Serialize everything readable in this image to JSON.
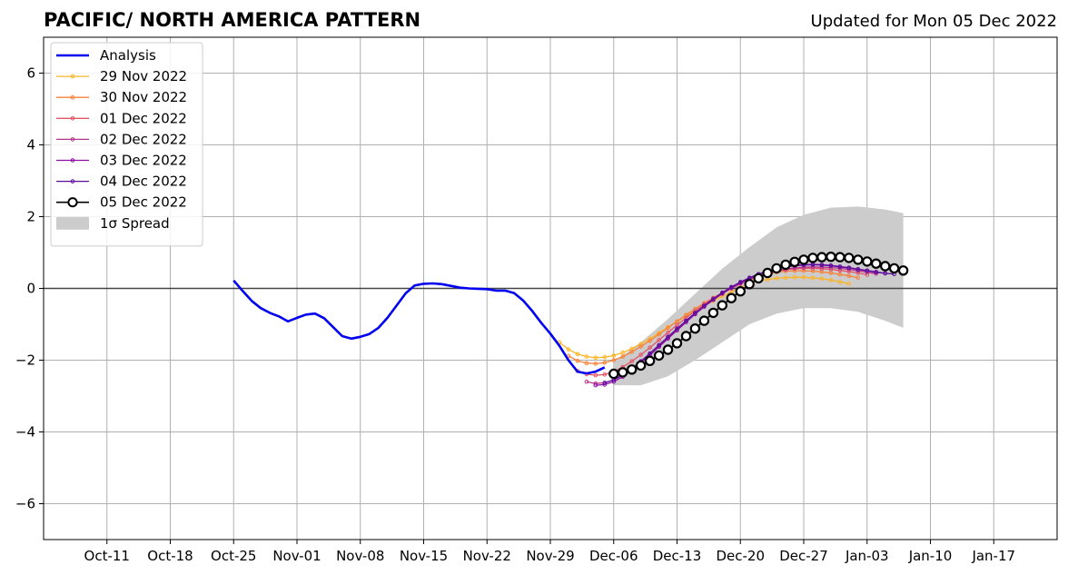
{
  "chart_data": {
    "type": "line",
    "title": "PACIFIC/ NORTH AMERICA PATTERN",
    "subtitle": "Updated for Mon 05 Dec 2022",
    "xlabel": "",
    "ylabel": "",
    "xlim": [
      "2022-10-04",
      "2023-01-24"
    ],
    "ylim": [
      -7,
      7
    ],
    "grid": true,
    "legend_position": "top-left",
    "x_ticks": [
      "Oct-11",
      "Oct-18",
      "Oct-25",
      "Nov-01",
      "Nov-08",
      "Nov-15",
      "Nov-22",
      "Nov-29",
      "Dec-06",
      "Dec-13",
      "Dec-20",
      "Dec-27",
      "Jan-03",
      "Jan-10",
      "Jan-17"
    ],
    "x_tick_dates": [
      "2022-10-11",
      "2022-10-18",
      "2022-10-25",
      "2022-11-01",
      "2022-11-08",
      "2022-11-15",
      "2022-11-22",
      "2022-11-29",
      "2022-12-06",
      "2022-12-13",
      "2022-12-20",
      "2022-12-27",
      "2023-01-03",
      "2023-01-10",
      "2023-01-17"
    ],
    "y_ticks": [
      6,
      4,
      2,
      0,
      -2,
      -4,
      -6
    ],
    "y_tick_labels": [
      "6",
      "4",
      "2",
      "0",
      "−2",
      "−4",
      "−6"
    ],
    "analysis": {
      "name": "Analysis",
      "color": "#0000ee",
      "x": [
        "2022-10-25",
        "2022-10-26",
        "2022-10-27",
        "2022-10-28",
        "2022-10-29",
        "2022-10-30",
        "2022-10-31",
        "2022-11-01",
        "2022-11-02",
        "2022-11-03",
        "2022-11-04",
        "2022-11-05",
        "2022-11-06",
        "2022-11-07",
        "2022-11-08",
        "2022-11-09",
        "2022-11-10",
        "2022-11-11",
        "2022-11-12",
        "2022-11-13",
        "2022-11-14",
        "2022-11-15",
        "2022-11-16",
        "2022-11-17",
        "2022-11-18",
        "2022-11-19",
        "2022-11-20",
        "2022-11-21",
        "2022-11-22",
        "2022-11-23",
        "2022-11-24",
        "2022-11-25",
        "2022-11-26",
        "2022-11-27",
        "2022-11-28",
        "2022-11-29",
        "2022-11-30",
        "2022-12-01",
        "2022-12-02",
        "2022-12-03",
        "2022-12-04",
        "2022-12-05"
      ],
      "y": [
        0.22,
        -0.07,
        -0.35,
        -0.55,
        -0.68,
        -0.78,
        -0.92,
        -0.82,
        -0.73,
        -0.7,
        -0.83,
        -1.08,
        -1.33,
        -1.4,
        -1.35,
        -1.27,
        -1.1,
        -0.82,
        -0.48,
        -0.14,
        0.08,
        0.13,
        0.14,
        0.12,
        0.07,
        0.02,
        0.0,
        -0.01,
        -0.02,
        -0.06,
        -0.06,
        -0.13,
        -0.34,
        -0.63,
        -0.96,
        -1.26,
        -1.6,
        -2.0,
        -2.32,
        -2.37,
        -2.32,
        -2.2
      ]
    },
    "forecasts": [
      {
        "name": "29 Nov 2022",
        "color": "#fcb428",
        "x": [
          "2022-11-30",
          "2022-12-01",
          "2022-12-02",
          "2022-12-03",
          "2022-12-04",
          "2022-12-05",
          "2022-12-06",
          "2022-12-07",
          "2022-12-08",
          "2022-12-09",
          "2022-12-10",
          "2022-12-11",
          "2022-12-12",
          "2022-12-13",
          "2022-12-14",
          "2022-12-15",
          "2022-12-16",
          "2022-12-17",
          "2022-12-18",
          "2022-12-19",
          "2022-12-20",
          "2022-12-21",
          "2022-12-22",
          "2022-12-23",
          "2022-12-24",
          "2022-12-25",
          "2022-12-26",
          "2022-12-27",
          "2022-12-28",
          "2022-12-29",
          "2022-12-30",
          "2022-12-31",
          "2023-01-01"
        ],
        "y": [
          -1.5,
          -1.7,
          -1.83,
          -1.9,
          -1.93,
          -1.92,
          -1.87,
          -1.79,
          -1.68,
          -1.55,
          -1.4,
          -1.24,
          -1.08,
          -0.92,
          -0.77,
          -0.62,
          -0.48,
          -0.35,
          -0.22,
          -0.1,
          0.02,
          0.12,
          0.2,
          0.25,
          0.28,
          0.3,
          0.31,
          0.31,
          0.29,
          0.27,
          0.23,
          0.18,
          0.13
        ]
      },
      {
        "name": "30 Nov 2022",
        "color": "#f8823a",
        "x": [
          "2022-12-01",
          "2022-12-02",
          "2022-12-03",
          "2022-12-04",
          "2022-12-05",
          "2022-12-06",
          "2022-12-07",
          "2022-12-08",
          "2022-12-09",
          "2022-12-10",
          "2022-12-11",
          "2022-12-12",
          "2022-12-13",
          "2022-12-14",
          "2022-12-15",
          "2022-12-16",
          "2022-12-17",
          "2022-12-18",
          "2022-12-19",
          "2022-12-20",
          "2022-12-21",
          "2022-12-22",
          "2022-12-23",
          "2022-12-24",
          "2022-12-25",
          "2022-12-26",
          "2022-12-27",
          "2022-12-28",
          "2022-12-29",
          "2022-12-30",
          "2022-12-31",
          "2023-01-01",
          "2023-01-02"
        ],
        "y": [
          -1.88,
          -2.02,
          -2.08,
          -2.1,
          -2.07,
          -2.0,
          -1.9,
          -1.77,
          -1.62,
          -1.46,
          -1.28,
          -1.1,
          -0.92,
          -0.74,
          -0.57,
          -0.41,
          -0.26,
          -0.12,
          0.01,
          0.13,
          0.24,
          0.33,
          0.4,
          0.45,
          0.48,
          0.49,
          0.49,
          0.48,
          0.46,
          0.43,
          0.39,
          0.35,
          0.3
        ]
      },
      {
        "name": "01 Dec 2022",
        "color": "#e3566a",
        "x": [
          "2022-12-02",
          "2022-12-03",
          "2022-12-04",
          "2022-12-05",
          "2022-12-06",
          "2022-12-07",
          "2022-12-08",
          "2022-12-09",
          "2022-12-10",
          "2022-12-11",
          "2022-12-12",
          "2022-12-13",
          "2022-12-14",
          "2022-12-15",
          "2022-12-16",
          "2022-12-17",
          "2022-12-18",
          "2022-12-19",
          "2022-12-20",
          "2022-12-21",
          "2022-12-22",
          "2022-12-23",
          "2022-12-24",
          "2022-12-25",
          "2022-12-26",
          "2022-12-27",
          "2022-12-28",
          "2022-12-29",
          "2022-12-30",
          "2022-12-31",
          "2023-01-01",
          "2023-01-02",
          "2023-01-03"
        ],
        "y": [
          -2.3,
          -2.39,
          -2.42,
          -2.4,
          -2.32,
          -2.19,
          -2.03,
          -1.85,
          -1.65,
          -1.44,
          -1.23,
          -1.02,
          -0.82,
          -0.62,
          -0.44,
          -0.27,
          -0.12,
          0.02,
          0.14,
          0.25,
          0.35,
          0.42,
          0.48,
          0.52,
          0.55,
          0.56,
          0.56,
          0.55,
          0.53,
          0.5,
          0.47,
          0.43,
          0.38
        ]
      },
      {
        "name": "02 Dec 2022",
        "color": "#b93289",
        "x": [
          "2022-12-03",
          "2022-12-04",
          "2022-12-05",
          "2022-12-06",
          "2022-12-07",
          "2022-12-08",
          "2022-12-09",
          "2022-12-10",
          "2022-12-11",
          "2022-12-12",
          "2022-12-13",
          "2022-12-14",
          "2022-12-15",
          "2022-12-16",
          "2022-12-17",
          "2022-12-18",
          "2022-12-19",
          "2022-12-20",
          "2022-12-21",
          "2022-12-22",
          "2022-12-23",
          "2022-12-24",
          "2022-12-25",
          "2022-12-26",
          "2022-12-27",
          "2022-12-28",
          "2022-12-29",
          "2022-12-30",
          "2022-12-31",
          "2023-01-01",
          "2023-01-02",
          "2023-01-03",
          "2023-01-04"
        ],
        "y": [
          -2.6,
          -2.65,
          -2.63,
          -2.55,
          -2.42,
          -2.25,
          -2.05,
          -1.83,
          -1.6,
          -1.37,
          -1.14,
          -0.91,
          -0.7,
          -0.5,
          -0.32,
          -0.15,
          0.0,
          0.13,
          0.25,
          0.35,
          0.43,
          0.49,
          0.54,
          0.57,
          0.59,
          0.6,
          0.59,
          0.58,
          0.56,
          0.53,
          0.49,
          0.45,
          0.41
        ]
      },
      {
        "name": "03 Dec 2022",
        "color": "#8c0fa3",
        "x": [
          "2022-12-04",
          "2022-12-05",
          "2022-12-06",
          "2022-12-07",
          "2022-12-08",
          "2022-12-09",
          "2022-12-10",
          "2022-12-11",
          "2022-12-12",
          "2022-12-13",
          "2022-12-14",
          "2022-12-15",
          "2022-12-16",
          "2022-12-17",
          "2022-12-18",
          "2022-12-19",
          "2022-12-20",
          "2022-12-21",
          "2022-12-22",
          "2022-12-23",
          "2022-12-24",
          "2022-12-25",
          "2022-12-26",
          "2022-12-27",
          "2022-12-28",
          "2022-12-29",
          "2022-12-30",
          "2022-12-31",
          "2023-01-01",
          "2023-01-02",
          "2023-01-03",
          "2023-01-04",
          "2023-01-05"
        ],
        "y": [
          -2.7,
          -2.68,
          -2.6,
          -2.46,
          -2.28,
          -2.08,
          -1.86,
          -1.63,
          -1.4,
          -1.17,
          -0.94,
          -0.72,
          -0.51,
          -0.32,
          -0.14,
          0.02,
          0.16,
          0.28,
          0.39,
          0.48,
          0.55,
          0.6,
          0.64,
          0.66,
          0.67,
          0.66,
          0.64,
          0.61,
          0.58,
          0.54,
          0.5,
          0.46,
          0.42
        ]
      },
      {
        "name": "04 Dec 2022",
        "color": "#5a0c9e",
        "x": [
          "2022-12-05",
          "2022-12-06",
          "2022-12-07",
          "2022-12-08",
          "2022-12-09",
          "2022-12-10",
          "2022-12-11",
          "2022-12-12",
          "2022-12-13",
          "2022-12-14",
          "2022-12-15",
          "2022-12-16",
          "2022-12-17",
          "2022-12-18",
          "2022-12-19",
          "2022-12-20",
          "2022-12-21",
          "2022-12-22",
          "2022-12-23",
          "2022-12-24",
          "2022-12-25",
          "2022-12-26",
          "2022-12-27",
          "2022-12-28",
          "2022-12-29",
          "2022-12-30",
          "2022-12-31",
          "2023-01-01",
          "2023-01-02",
          "2023-01-03",
          "2023-01-04",
          "2023-01-05",
          "2023-01-06"
        ],
        "y": [
          -2.63,
          -2.55,
          -2.41,
          -2.23,
          -2.03,
          -1.81,
          -1.58,
          -1.35,
          -1.12,
          -0.9,
          -0.68,
          -0.48,
          -0.29,
          -0.12,
          0.04,
          0.18,
          0.3,
          0.4,
          0.48,
          0.55,
          0.6,
          0.63,
          0.65,
          0.66,
          0.65,
          0.63,
          0.6,
          0.57,
          0.53,
          0.49,
          0.45,
          0.42,
          0.4
        ]
      },
      {
        "name": "05 Dec 2022",
        "color": "#000000",
        "marker_fill": "#ffffff",
        "x": [
          "2022-12-06",
          "2022-12-07",
          "2022-12-08",
          "2022-12-09",
          "2022-12-10",
          "2022-12-11",
          "2022-12-12",
          "2022-12-13",
          "2022-12-14",
          "2022-12-15",
          "2022-12-16",
          "2022-12-17",
          "2022-12-18",
          "2022-12-19",
          "2022-12-20",
          "2022-12-21",
          "2022-12-22",
          "2022-12-23",
          "2022-12-24",
          "2022-12-25",
          "2022-12-26",
          "2022-12-27",
          "2022-12-28",
          "2022-12-29",
          "2022-12-30",
          "2022-12-31",
          "2023-01-01",
          "2023-01-02",
          "2023-01-03",
          "2023-01-04",
          "2023-01-05",
          "2023-01-06",
          "2023-01-07"
        ],
        "y": [
          -2.38,
          -2.34,
          -2.26,
          -2.15,
          -2.02,
          -1.87,
          -1.71,
          -1.53,
          -1.33,
          -1.12,
          -0.9,
          -0.68,
          -0.47,
          -0.27,
          -0.08,
          0.12,
          0.28,
          0.43,
          0.56,
          0.66,
          0.74,
          0.8,
          0.85,
          0.87,
          0.88,
          0.87,
          0.85,
          0.8,
          0.75,
          0.69,
          0.62,
          0.56,
          0.5
        ]
      }
    ],
    "spread": {
      "name": "1σ Spread",
      "color": "#cccccc",
      "x": [
        "2022-12-06",
        "2022-12-09",
        "2022-12-12",
        "2022-12-15",
        "2022-12-18",
        "2022-12-21",
        "2022-12-24",
        "2022-12-27",
        "2022-12-30",
        "2023-01-02",
        "2023-01-05",
        "2023-01-07"
      ],
      "upper": [
        -2.05,
        -1.5,
        -0.85,
        -0.15,
        0.55,
        1.15,
        1.7,
        2.05,
        2.25,
        2.28,
        2.2,
        2.1
      ],
      "lower": [
        -2.7,
        -2.7,
        -2.45,
        -2.0,
        -1.5,
        -1.0,
        -0.7,
        -0.55,
        -0.55,
        -0.65,
        -0.9,
        -1.1
      ]
    }
  }
}
